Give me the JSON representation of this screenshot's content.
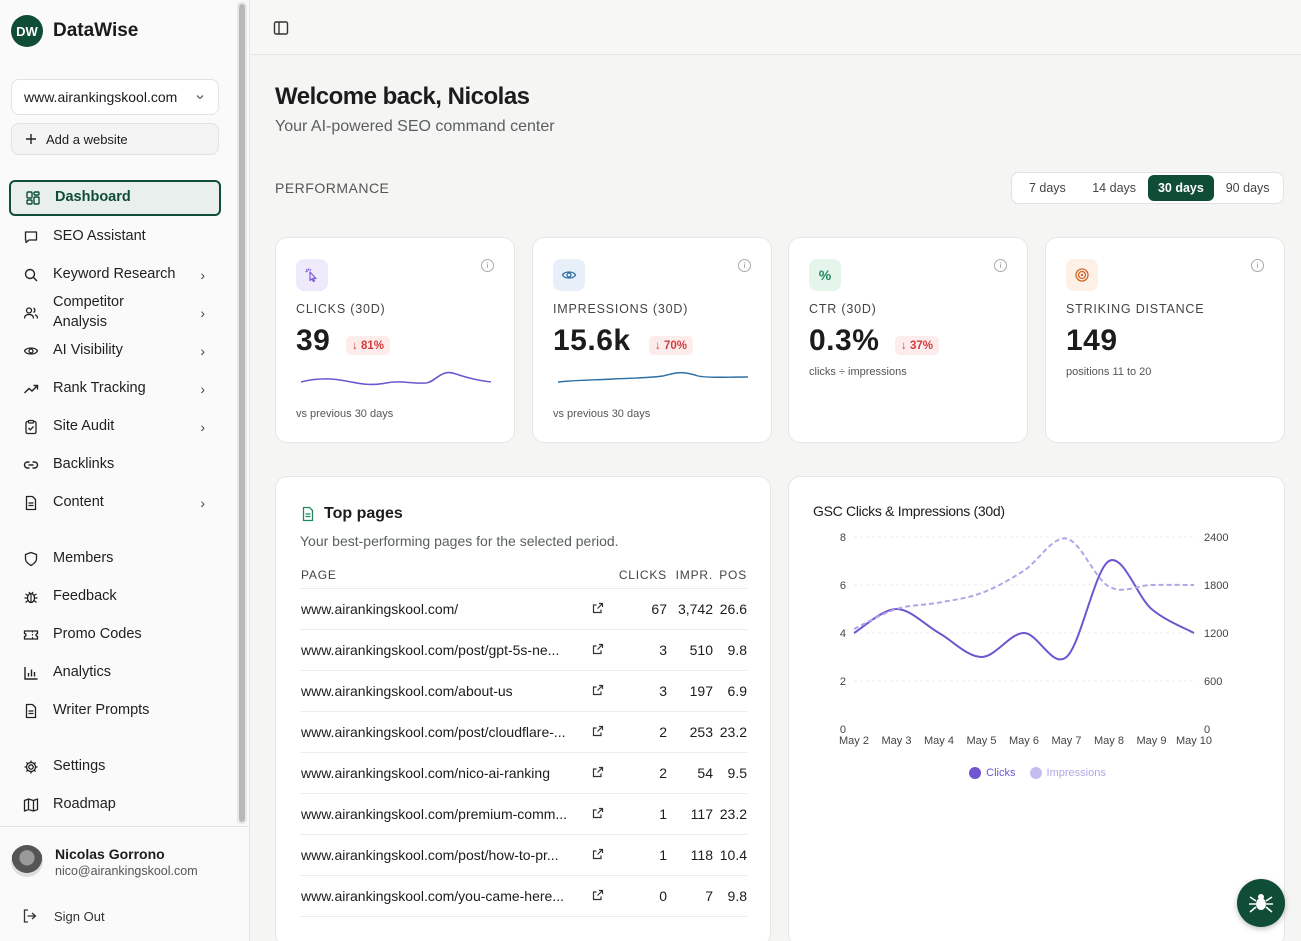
{
  "brand": {
    "logo_text": "DW",
    "name": "DataWise"
  },
  "site_selector": {
    "value": "www.airankingskool.com"
  },
  "add_site_label": "Add a website",
  "nav": [
    {
      "label": "Dashboard",
      "icon": "dashboard-icon",
      "active": true
    },
    {
      "label": "SEO Assistant",
      "icon": "chat-icon"
    },
    {
      "label": "Keyword Research",
      "icon": "search-icon",
      "chevron": true
    },
    {
      "label": "Competitor Analysis",
      "icon": "users-icon",
      "chevron": true
    },
    {
      "label": "AI Visibility",
      "icon": "eye-icon",
      "chevron": true
    },
    {
      "label": "Rank Tracking",
      "icon": "trend-icon",
      "chevron": true
    },
    {
      "label": "Site Audit",
      "icon": "clipboard-icon",
      "chevron": true
    },
    {
      "label": "Backlinks",
      "icon": "link-icon"
    },
    {
      "label": "Content",
      "icon": "document-icon",
      "chevron": true
    }
  ],
  "nav2": [
    {
      "label": "Members",
      "icon": "shield-icon"
    },
    {
      "label": "Feedback",
      "icon": "bug-icon"
    },
    {
      "label": "Promo Codes",
      "icon": "ticket-icon"
    },
    {
      "label": "Analytics",
      "icon": "bar-chart-icon"
    },
    {
      "label": "Writer Prompts",
      "icon": "document-icon"
    }
  ],
  "nav3": [
    {
      "label": "Settings",
      "icon": "gear-icon"
    },
    {
      "label": "Roadmap",
      "icon": "map-icon"
    }
  ],
  "user": {
    "name": "Nicolas Gorrono",
    "email": "nico@airankingskool.com",
    "signout": "Sign Out"
  },
  "header": {
    "title": "Welcome back, Nicolas",
    "subtitle": "Your AI-powered SEO command center"
  },
  "performance_label": "PERFORMANCE",
  "ranges": [
    {
      "label": "7 days"
    },
    {
      "label": "14 days"
    },
    {
      "label": "30 days",
      "active": true
    },
    {
      "label": "90 days"
    }
  ],
  "kpis": [
    {
      "title": "CLICKS (30D)",
      "value": "39",
      "delta": "↓ 81%",
      "sub": "vs previous 30 days",
      "icon": "cursor-click-icon",
      "accent": "#7c5cd6",
      "bg": "#efeafb"
    },
    {
      "title": "IMPRESSIONS (30D)",
      "value": "15.6k",
      "delta": "↓ 70%",
      "sub": "vs previous 30 days",
      "icon": "eye-icon",
      "accent": "#2d6fa3",
      "bg": "#e7f0f8"
    },
    {
      "title": "CTR (30D)",
      "value": "0.3%",
      "delta": "↓ 37%",
      "sub": "clicks ÷ impressions",
      "icon": "percent-icon",
      "accent": "#1e8a5a",
      "bg": "#e5f5ec"
    },
    {
      "title": "STRIKING DISTANCE",
      "value": "149",
      "delta": "",
      "sub": "positions 11 to 20",
      "icon": "target-icon",
      "accent": "#d2662a",
      "bg": "#fdf0e6"
    }
  ],
  "top_pages": {
    "title": "Top pages",
    "description": "Your best-performing pages for the selected period.",
    "columns": [
      "PAGE",
      "CLICKS",
      "IMPR.",
      "POS"
    ],
    "rows": [
      {
        "page": "www.airankingskool.com/",
        "clicks": "67",
        "impr": "3,742",
        "pos": "26.6"
      },
      {
        "page": "www.airankingskool.com/post/gpt-5s-ne...",
        "clicks": "3",
        "impr": "510",
        "pos": "9.8"
      },
      {
        "page": "www.airankingskool.com/about-us",
        "clicks": "3",
        "impr": "197",
        "pos": "6.9"
      },
      {
        "page": "www.airankingskool.com/post/cloudflare-...",
        "clicks": "2",
        "impr": "253",
        "pos": "23.2"
      },
      {
        "page": "www.airankingskool.com/nico-ai-ranking",
        "clicks": "2",
        "impr": "54",
        "pos": "9.5"
      },
      {
        "page": "www.airankingskool.com/premium-comm...",
        "clicks": "1",
        "impr": "117",
        "pos": "23.2"
      },
      {
        "page": "www.airankingskool.com/post/how-to-pr...",
        "clicks": "1",
        "impr": "118",
        "pos": "10.4"
      },
      {
        "page": "www.airankingskool.com/you-came-here...",
        "clicks": "0",
        "impr": "7",
        "pos": "9.8"
      }
    ]
  },
  "chart_data": {
    "type": "line",
    "title": "GSC Clicks & Impressions (30d)",
    "x": [
      "May 2",
      "May 3",
      "May 4",
      "May 5",
      "May 6",
      "May 7",
      "May 8",
      "May 9",
      "May 10"
    ],
    "series": [
      {
        "name": "Clicks",
        "axis": "left",
        "color": "#6f55cf",
        "values": [
          4,
          5,
          4,
          3,
          4,
          3,
          7,
          5,
          4
        ]
      },
      {
        "name": "Impressions",
        "axis": "right",
        "color": "#b3a6e8",
        "dashed": true,
        "values": [
          1250,
          1500,
          1580,
          1700,
          1980,
          2380,
          1780,
          1800,
          1800
        ]
      }
    ],
    "ylim_left": [
      0,
      8
    ],
    "yticks_left": [
      0,
      2,
      4,
      6,
      8
    ],
    "ylim_right": [
      0,
      2400
    ],
    "yticks_right": [
      0,
      600,
      1200,
      1800,
      2400
    ],
    "legend": "bottom-center",
    "grid": true
  }
}
